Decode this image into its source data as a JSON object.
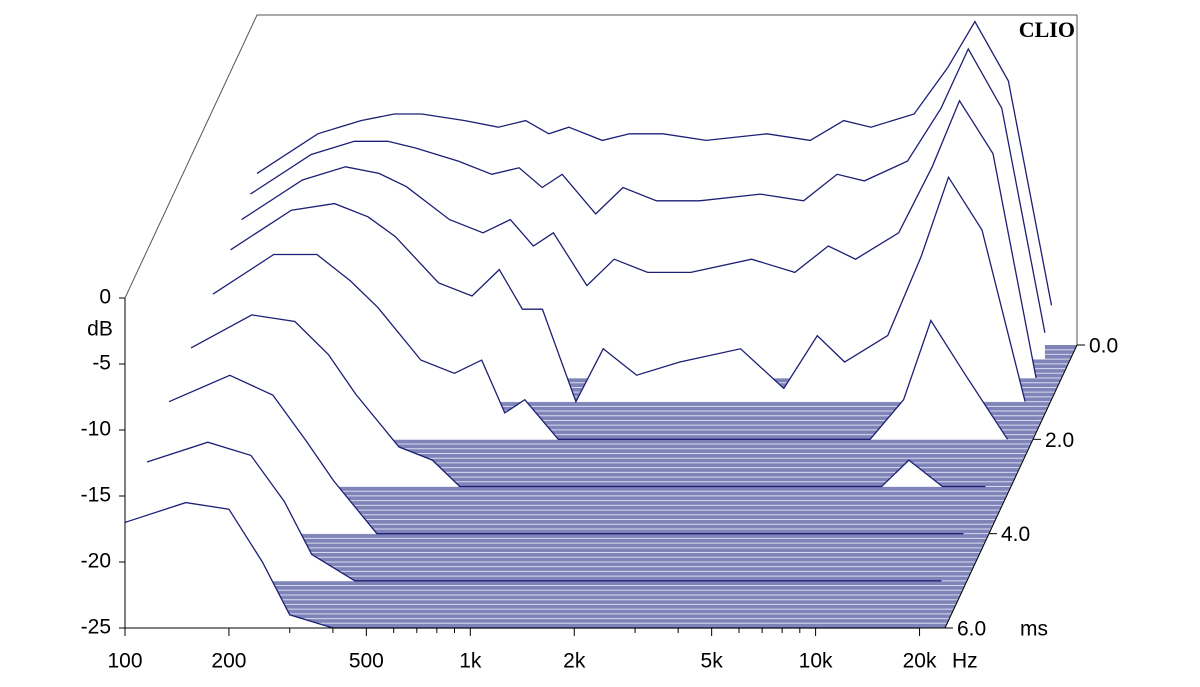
{
  "chart_data": {
    "type": "waterfall",
    "title": "CLIO",
    "x_unit": "Hz",
    "y_label": "dB",
    "z_unit": "ms",
    "x": [
      100,
      150,
      200,
      250,
      300,
      400,
      500,
      600,
      700,
      800,
      1000,
      1200,
      1500,
      2000,
      3000,
      4000,
      5000,
      6000,
      8000,
      10000,
      12000,
      15000,
      20000
    ],
    "z": [
      0,
      0.3,
      0.7,
      1.2,
      2,
      3,
      4,
      5,
      6
    ],
    "series": [
      {
        "values": [
          -12,
          -9,
          -8,
          -7.5,
          -7.5,
          -8,
          -8.5,
          -8,
          -9,
          -8.5,
          -9.5,
          -9,
          -9,
          -9.5,
          -9,
          -9.5,
          -8,
          -8.5,
          -7.5,
          -4,
          -0.5,
          -5,
          -22
        ]
      },
      {
        "values": [
          -12.5,
          -9.5,
          -8.5,
          -8.5,
          -9,
          -10,
          -11,
          -10.5,
          -12,
          -11,
          -14,
          -12,
          -13,
          -13,
          -12.5,
          -13,
          -11,
          -11.5,
          -10,
          -6,
          -1.5,
          -6,
          -23
        ]
      },
      {
        "values": [
          -13,
          -10,
          -9,
          -9.5,
          -10.5,
          -13,
          -14,
          -13,
          -15,
          -14,
          -18,
          -16,
          -17,
          -17,
          -16,
          -17,
          -15,
          -16,
          -14,
          -9,
          -4,
          -8,
          -25
        ]
      },
      {
        "values": [
          -13.5,
          -10.5,
          -10,
          -11,
          -12.5,
          -16,
          -17,
          -15,
          -18,
          -18,
          -25,
          -21,
          -23,
          -22,
          -21,
          -24,
          -20,
          -22,
          -20,
          -14,
          -8,
          -12,
          -25
        ]
      },
      {
        "values": [
          -14,
          -11,
          -11,
          -13,
          -15,
          -19,
          -20,
          -19,
          -23,
          -22,
          -25,
          -25,
          -25,
          -25,
          -25,
          -25,
          -25,
          -25,
          -25,
          -22,
          -16,
          -20,
          -25
        ]
      },
      {
        "values": [
          -14.5,
          -12,
          -12.5,
          -15,
          -18,
          -22,
          -23,
          -25,
          -25,
          -25,
          -25,
          -25,
          -25,
          -25,
          -25,
          -25,
          -25,
          -25,
          -25,
          -25,
          -23,
          -25,
          -25
        ]
      },
      {
        "values": [
          -15,
          -13,
          -14.5,
          -18,
          -21,
          -25,
          -25,
          -25,
          -25,
          -25,
          -25,
          -25,
          -25,
          -25,
          -25,
          -25,
          -25,
          -25,
          -25,
          -25,
          -25,
          -25,
          -25
        ]
      },
      {
        "values": [
          -16,
          -14.5,
          -15.5,
          -19,
          -23,
          -25,
          -25,
          -25,
          -25,
          -25,
          -25,
          -25,
          -25,
          -25,
          -25,
          -25,
          -25,
          -25,
          -25,
          -25,
          -25,
          -25,
          -25
        ]
      },
      {
        "values": [
          -17,
          -15.5,
          -16,
          -20,
          -24,
          -25,
          -25,
          -25,
          -25,
          -25,
          -25,
          -25,
          -25,
          -25,
          -25,
          -25,
          -25,
          -25,
          -25,
          -25,
          -25,
          -25,
          -25
        ]
      }
    ],
    "color": "#1c1f74",
    "xlim": [
      100,
      23700
    ],
    "log_x": true,
    "xticks": [
      100,
      200,
      500,
      {
        "value": 1000,
        "label": "1k"
      },
      {
        "value": 2000,
        "label": "2k"
      },
      {
        "value": 5000,
        "label": "5k"
      },
      {
        "value": 10000,
        "label": "10k"
      },
      {
        "value": 20000,
        "label": "20k"
      }
    ],
    "xminorticks": [
      300,
      400,
      600,
      700,
      800,
      900,
      3000,
      4000,
      6000,
      7000,
      8000,
      9000
    ],
    "ylim": [
      -25,
      0
    ],
    "yticks": [
      0,
      -5,
      -10,
      -15,
      -20,
      -25
    ],
    "zlim": [
      0,
      6
    ],
    "zticks": [
      {
        "value": 0,
        "label": "0.0"
      },
      {
        "value": 2,
        "label": "2.0"
      },
      {
        "value": 4,
        "label": "4.0"
      },
      {
        "value": 6,
        "label": "6.0"
      }
    ]
  }
}
